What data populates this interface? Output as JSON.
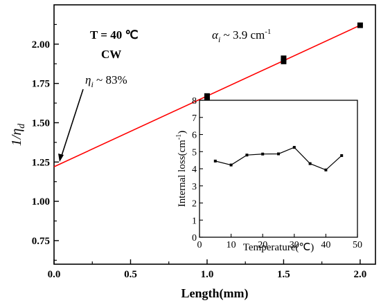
{
  "chart_data": [
    {
      "type": "scatter",
      "ylabel": "1/ηd",
      "ylabel_main": "1/η",
      "ylabel_sub": "d",
      "xlabel": "Length(mm)",
      "xlim": [
        0.0,
        2.1
      ],
      "ylim": [
        0.6,
        2.25
      ],
      "x_ticks": [
        "0.0",
        "0.5",
        "1.0",
        "1.5",
        "2.0"
      ],
      "y_ticks": [
        "0.75",
        "1.00",
        "1.25",
        "1.50",
        "1.75",
        "2.00"
      ],
      "series": [
        {
          "type": "scatter",
          "x": [
            1.0,
            1.0,
            1.5,
            1.5,
            2.0
          ],
          "y": [
            1.64,
            1.67,
            1.89,
            1.91,
            2.12
          ]
        },
        {
          "type": "line",
          "fit": true,
          "x": [
            0.0,
            2.0
          ],
          "y": [
            1.22,
            2.12
          ],
          "color": "#ff0000"
        }
      ],
      "annotations": {
        "temperature": "T = 40 ℃",
        "mode": "CW",
        "eta_symbol": "η",
        "eta_sub": "i",
        "eta_text": " ~ 83%",
        "alpha_symbol": "α",
        "alpha_sub": "i",
        "alpha_text": " ~ 3.9 cm",
        "alpha_sup": "-1"
      }
    },
    {
      "type": "line",
      "inset": true,
      "xlabel": "Temperature(℃)",
      "ylabel": "Internal loss(cm-1)",
      "ylabel_main": "Internal loss(cm",
      "ylabel_sup": "-1",
      "ylabel_end": ")",
      "xlim": [
        0,
        50
      ],
      "ylim": [
        0,
        8
      ],
      "x_ticks": [
        "0",
        "10",
        "20",
        "30",
        "40",
        "50"
      ],
      "y_ticks": [
        "0",
        "1",
        "2",
        "3",
        "4",
        "5",
        "6",
        "7",
        "8"
      ],
      "series": [
        {
          "x": [
            5,
            10,
            15,
            20,
            25,
            30,
            35,
            40,
            45
          ],
          "y": [
            4.45,
            4.22,
            4.8,
            4.86,
            4.87,
            5.25,
            4.3,
            3.93,
            4.77
          ]
        }
      ]
    }
  ]
}
